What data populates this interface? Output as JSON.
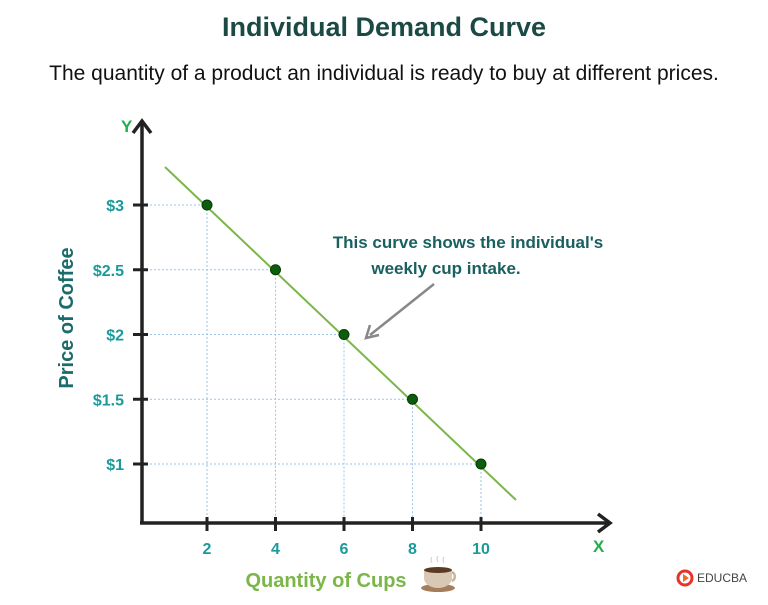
{
  "title": "Individual Demand Curve",
  "subtitle": "The quantity of a product an individual is ready to buy at different prices.",
  "chart_data": {
    "type": "line",
    "title": "Individual Demand Curve",
    "xlabel": "Quantity of Cups",
    "ylabel": "Price of Coffee",
    "x_axis_letter": "X",
    "y_axis_letter": "Y",
    "x_ticks": [
      "2",
      "4",
      "6",
      "8",
      "10"
    ],
    "y_ticks": [
      "$1",
      "$1.5",
      "$2",
      "$2.5",
      "$3"
    ],
    "x_tick_values": [
      2,
      4,
      6,
      8,
      10
    ],
    "y_tick_values": [
      1,
      1.5,
      2,
      2.5,
      3
    ],
    "points": [
      {
        "x": 2,
        "y": 3
      },
      {
        "x": 4,
        "y": 2.5
      },
      {
        "x": 6,
        "y": 2
      },
      {
        "x": 8,
        "y": 1.5
      },
      {
        "x": 10,
        "y": 1
      }
    ],
    "grid": "dotted guide lines to points",
    "annotation": [
      "This curve shows the individual's",
      "weekly cup intake."
    ],
    "colors": {
      "curve": "#7ab648",
      "points": "#0b5e0b",
      "ticks": "#1a9a9a",
      "axis_letters": "#1fb04a",
      "xlabel": "#7ab648",
      "ylabel": "#1a6b6b",
      "annotation": "#1a6060"
    }
  },
  "logo": {
    "text": "EDUCBA"
  }
}
